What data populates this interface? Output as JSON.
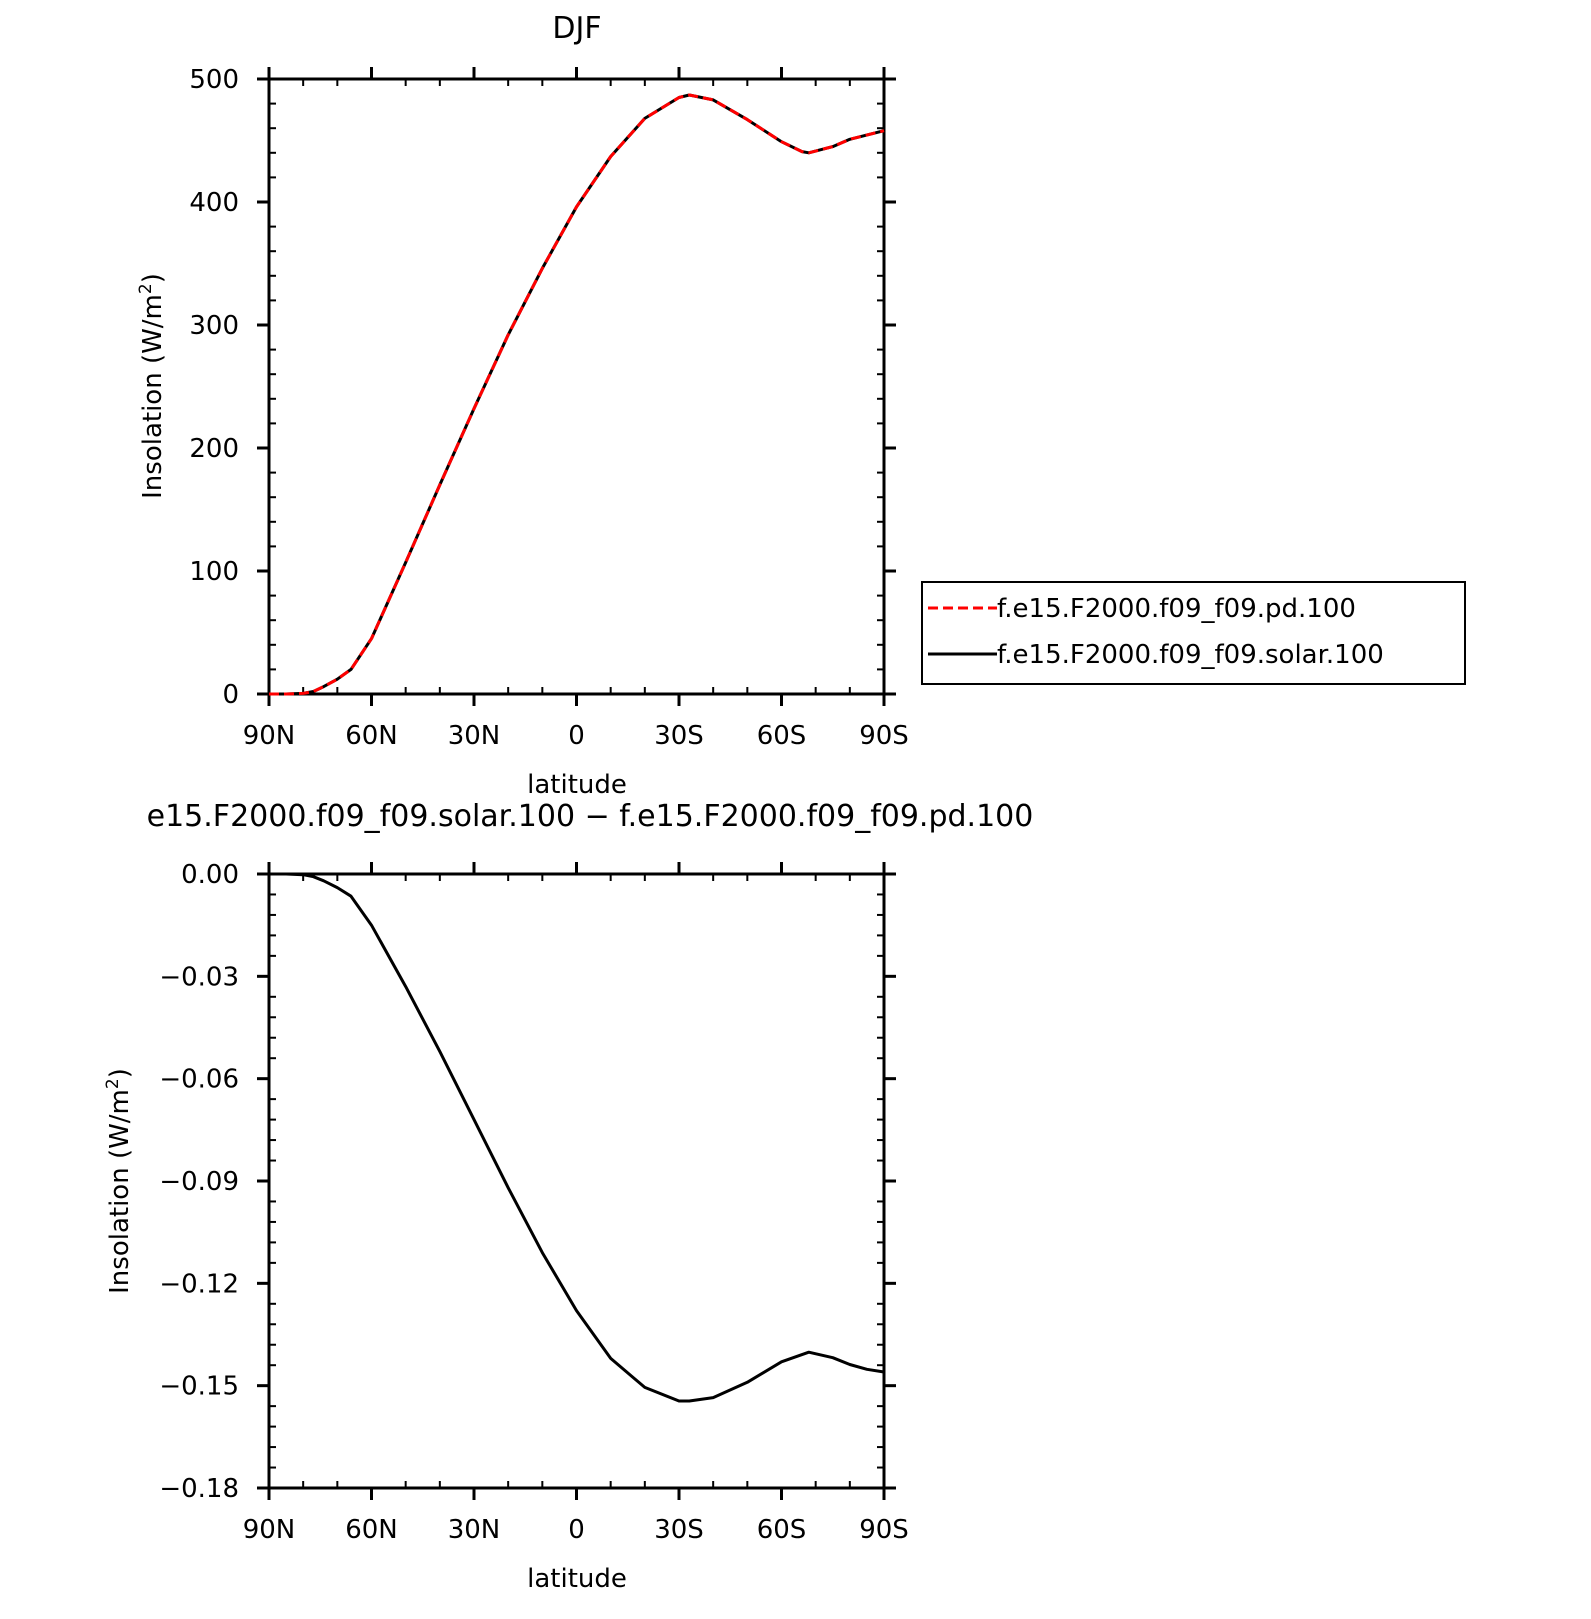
{
  "chart_data": [
    {
      "type": "line",
      "title": "DJF",
      "xlabel": "latitude",
      "ylabel": "Insolation (W/m²)",
      "ylabel_main": "Insolation  (W/m",
      "ylabel_sup": "2",
      "ylabel_close": ")",
      "xlim": [
        90,
        -90
      ],
      "ylim": [
        0,
        500
      ],
      "xticks": [
        90,
        60,
        30,
        0,
        -30,
        -60,
        -90
      ],
      "xtick_labels": [
        "90N",
        "60N",
        "30N",
        "0",
        "30S",
        "60S",
        "90S"
      ],
      "yticks": [
        0,
        100,
        200,
        300,
        400,
        500
      ],
      "ytick_labels": [
        "0",
        "100",
        "200",
        "300",
        "400",
        "500"
      ],
      "legend": "right",
      "series": [
        {
          "name": "f.e15.F2000.f09_f09.pd.100",
          "color": "#ff0000",
          "dash": "dashed",
          "x": [
            90,
            85,
            80,
            77,
            74,
            70,
            66,
            60,
            50,
            40,
            30,
            20,
            10,
            0,
            -10,
            -20,
            -30,
            -33,
            -40,
            -50,
            -60,
            -66,
            -68,
            -75,
            -80,
            -90
          ],
          "y": [
            0,
            0,
            0.5,
            2,
            6,
            12,
            20,
            45,
            107,
            170,
            232,
            292,
            346,
            396,
            437,
            468,
            485,
            487,
            483,
            467,
            449,
            441,
            440,
            445,
            451,
            458
          ]
        },
        {
          "name": "f.e15.F2000.f09_f09.solar.100",
          "color": "#000000",
          "dash": "solid",
          "x": [
            90,
            85,
            80,
            77,
            74,
            70,
            66,
            60,
            50,
            40,
            30,
            20,
            10,
            0,
            -10,
            -20,
            -30,
            -33,
            -40,
            -50,
            -60,
            -66,
            -68,
            -75,
            -80,
            -90
          ],
          "y": [
            0,
            0,
            0.5,
            2,
            6,
            12,
            20,
            45,
            107,
            170,
            232,
            292,
            346,
            396,
            437,
            468,
            485,
            487,
            483,
            467,
            449,
            441,
            440,
            445,
            451,
            458
          ]
        }
      ]
    },
    {
      "type": "line",
      "title": "e15.F2000.f09_f09.solar.100 − f.e15.F2000.f09_f09.pd.100",
      "xlabel": "latitude",
      "ylabel": "Insolation (W/m²)",
      "ylabel_main": "Insolation  (W/m",
      "ylabel_sup": "2",
      "ylabel_close": ")",
      "xlim": [
        90,
        -90
      ],
      "ylim": [
        -0.18,
        0.0
      ],
      "xticks": [
        90,
        60,
        30,
        0,
        -30,
        -60,
        -90
      ],
      "xtick_labels": [
        "90N",
        "60N",
        "30N",
        "0",
        "30S",
        "60S",
        "90S"
      ],
      "yticks": [
        0.0,
        -0.03,
        -0.06,
        -0.09,
        -0.12,
        -0.15,
        -0.18
      ],
      "ytick_labels": [
        "0.00",
        "−0.03",
        "−0.06",
        "−0.09",
        "−0.12",
        "−0.15",
        "−0.18"
      ],
      "series": [
        {
          "color": "#000000",
          "dash": "solid",
          "x": [
            90,
            85,
            80,
            77,
            74,
            70,
            66,
            60,
            50,
            40,
            30,
            20,
            10,
            0,
            -10,
            -20,
            -30,
            -33,
            -40,
            -50,
            -60,
            -68,
            -75,
            -80,
            -85,
            -90
          ],
          "y": [
            0,
            0,
            -0.0002,
            -0.0008,
            -0.002,
            -0.004,
            -0.0065,
            -0.015,
            -0.033,
            -0.052,
            -0.072,
            -0.092,
            -0.111,
            -0.128,
            -0.142,
            -0.1505,
            -0.1545,
            -0.1545,
            -0.1535,
            -0.149,
            -0.143,
            -0.1402,
            -0.1418,
            -0.1438,
            -0.1452,
            -0.146
          ]
        }
      ]
    }
  ]
}
